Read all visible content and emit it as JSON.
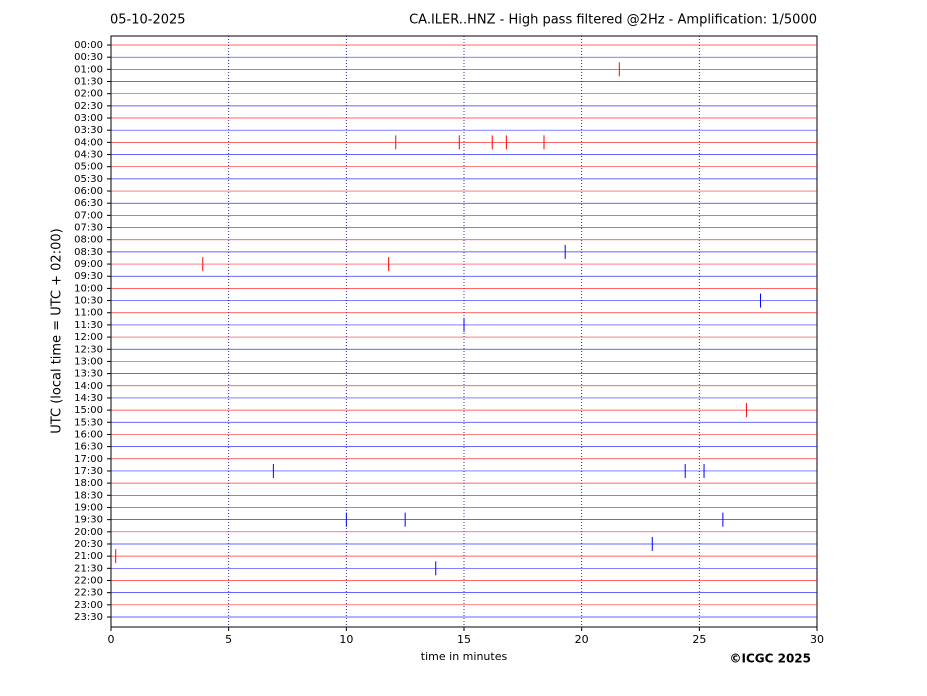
{
  "chart_data": {
    "type": "helicorder",
    "date": "05-10-2025",
    "title": "CA.ILER..HNZ - High pass filtered @2Hz - Amplification: 1/5000",
    "ylabel": "UTC (local time = UTC + 02:00)",
    "xlabel": "time in minutes",
    "credit": "©ICGC 2025",
    "xlim": [
      0,
      30
    ],
    "xticks": [
      0,
      5,
      10,
      15,
      20,
      25,
      30
    ],
    "grid": true,
    "series": [
      {
        "name": "00:00",
        "color": "#ff0000",
        "events": []
      },
      {
        "name": "00:30",
        "color": "#0000ff",
        "events": []
      },
      {
        "name": "01:00",
        "color": "#ff0000",
        "events": [
          21.6
        ]
      },
      {
        "name": "01:30",
        "color": "#0000ff",
        "events": []
      },
      {
        "name": "02:00",
        "color": "#ff0000",
        "events": []
      },
      {
        "name": "02:30",
        "color": "#0000ff",
        "events": []
      },
      {
        "name": "03:00",
        "color": "#ff0000",
        "events": []
      },
      {
        "name": "03:30",
        "color": "#0000ff",
        "events": []
      },
      {
        "name": "04:00",
        "color": "#ff0000",
        "events": [
          12.1,
          14.8,
          16.2,
          16.8,
          18.4
        ]
      },
      {
        "name": "04:30",
        "color": "#0000ff",
        "events": []
      },
      {
        "name": "05:00",
        "color": "#ff0000",
        "events": []
      },
      {
        "name": "05:30",
        "color": "#0000ff",
        "events": []
      },
      {
        "name": "06:00",
        "color": "#ff0000",
        "events": []
      },
      {
        "name": "06:30",
        "color": "#0000ff",
        "events": []
      },
      {
        "name": "07:00",
        "color": "#ff0000",
        "events": []
      },
      {
        "name": "07:30",
        "color": "#0000ff",
        "events": []
      },
      {
        "name": "08:00",
        "color": "#ff0000",
        "events": []
      },
      {
        "name": "08:30",
        "color": "#0000ff",
        "events": [
          19.3
        ]
      },
      {
        "name": "09:00",
        "color": "#ff0000",
        "events": [
          3.9,
          11.8
        ]
      },
      {
        "name": "09:30",
        "color": "#0000ff",
        "events": []
      },
      {
        "name": "10:00",
        "color": "#ff0000",
        "events": []
      },
      {
        "name": "10:30",
        "color": "#0000ff",
        "events": [
          27.6
        ]
      },
      {
        "name": "11:00",
        "color": "#ff0000",
        "events": []
      },
      {
        "name": "11:30",
        "color": "#0000ff",
        "events": [
          15.0
        ]
      },
      {
        "name": "12:00",
        "color": "#ff0000",
        "events": []
      },
      {
        "name": "12:30",
        "color": "#0000ff",
        "events": []
      },
      {
        "name": "13:00",
        "color": "#ff0000",
        "events": []
      },
      {
        "name": "13:30",
        "color": "#0000ff",
        "events": []
      },
      {
        "name": "14:00",
        "color": "#ff0000",
        "events": []
      },
      {
        "name": "14:30",
        "color": "#0000ff",
        "events": []
      },
      {
        "name": "15:00",
        "color": "#ff0000",
        "events": [
          27.0
        ]
      },
      {
        "name": "15:30",
        "color": "#0000ff",
        "events": []
      },
      {
        "name": "16:00",
        "color": "#ff0000",
        "events": []
      },
      {
        "name": "16:30",
        "color": "#0000ff",
        "events": []
      },
      {
        "name": "17:00",
        "color": "#ff0000",
        "events": []
      },
      {
        "name": "17:30",
        "color": "#0000ff",
        "events": [
          6.9,
          24.4,
          25.2
        ]
      },
      {
        "name": "18:00",
        "color": "#ff0000",
        "events": []
      },
      {
        "name": "18:30",
        "color": "#0000ff",
        "events": []
      },
      {
        "name": "19:00",
        "color": "#ff0000",
        "events": []
      },
      {
        "name": "19:30",
        "color": "#0000ff",
        "events": [
          10.0,
          12.5,
          26.0
        ]
      },
      {
        "name": "20:00",
        "color": "#ff0000",
        "events": []
      },
      {
        "name": "20:30",
        "color": "#0000ff",
        "events": [
          23.0
        ]
      },
      {
        "name": "21:00",
        "color": "#ff0000",
        "events": [
          0.2
        ]
      },
      {
        "name": "21:30",
        "color": "#0000ff",
        "events": [
          13.8
        ]
      },
      {
        "name": "22:00",
        "color": "#ff0000",
        "events": []
      },
      {
        "name": "22:30",
        "color": "#0000ff",
        "events": []
      },
      {
        "name": "23:00",
        "color": "#ff0000",
        "events": []
      },
      {
        "name": "23:30",
        "color": "#0000ff",
        "events": []
      }
    ]
  }
}
